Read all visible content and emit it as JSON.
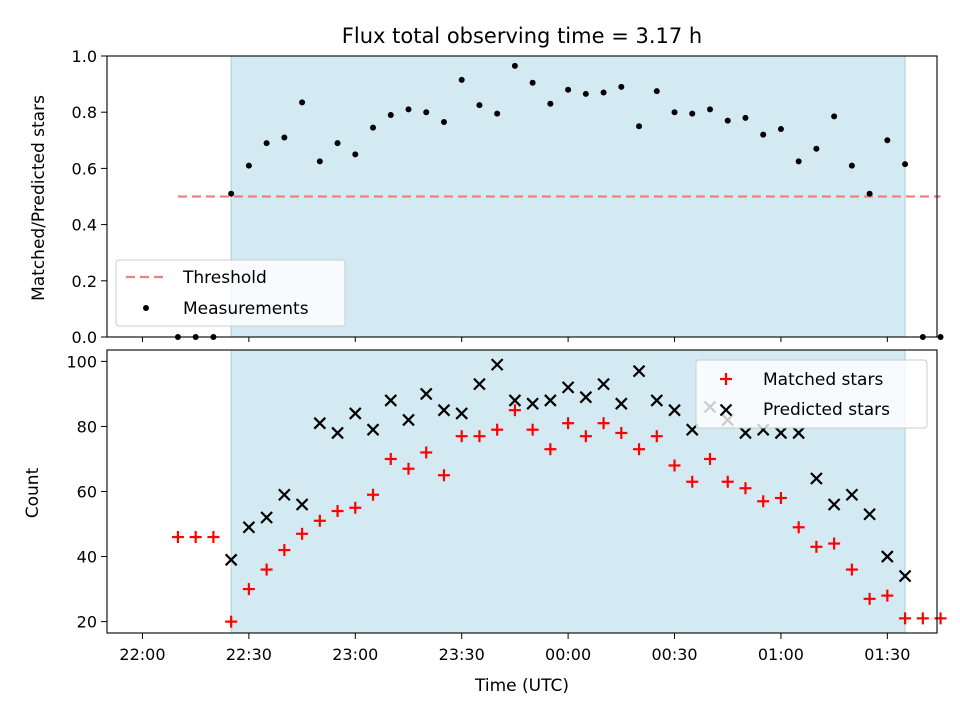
{
  "chart_data": [
    {
      "type": "scatter",
      "title": "Flux total observing time = 3.17 h",
      "xlabel": "",
      "ylabel": "Matched/Predicted stars",
      "xlim": [
        -5,
        112
      ],
      "ylim": [
        0,
        1.0
      ],
      "yticks": [
        0.0,
        0.2,
        0.4,
        0.6,
        0.8,
        1.0
      ],
      "ytick_labels": [
        "0.0",
        "0.2",
        "0.4",
        "0.6",
        "0.8",
        "1.0"
      ],
      "observing_window": [
        12.5,
        107.5
      ],
      "threshold": {
        "name": "Threshold",
        "value": 0.5,
        "x_range": [
          5,
          112.5
        ],
        "color": "#f08080"
      },
      "legend": {
        "position": "lower-left",
        "entries": [
          "Threshold",
          "Measurements"
        ]
      },
      "series": [
        {
          "name": "Measurements",
          "color": "#000000",
          "x": [
            5,
            7.5,
            10,
            12.5,
            15,
            17.5,
            20,
            22.5,
            25,
            27.5,
            30,
            32.5,
            35,
            37.5,
            40,
            42.5,
            45,
            47.5,
            50,
            52.5,
            55,
            57.5,
            60,
            62.5,
            65,
            67.5,
            70,
            72.5,
            75,
            77.5,
            80,
            82.5,
            85,
            87.5,
            90,
            92.5,
            95,
            97.5,
            100,
            102.5,
            105,
            107.5,
            110,
            112.5
          ],
          "y": [
            0,
            0,
            0,
            0.51,
            0.61,
            0.69,
            0.71,
            0.835,
            0.625,
            0.69,
            0.65,
            0.745,
            0.79,
            0.81,
            0.8,
            0.765,
            0.915,
            0.825,
            0.795,
            0.965,
            0.905,
            0.83,
            0.88,
            0.865,
            0.87,
            0.89,
            0.75,
            0.875,
            0.8,
            0.795,
            0.81,
            0.77,
            0.78,
            0.72,
            0.74,
            0.625,
            0.67,
            0.785,
            0.61,
            0.51,
            0.7,
            0.615,
            0,
            0
          ]
        }
      ]
    },
    {
      "type": "scatter",
      "title": "",
      "xlabel": "Time (UTC)",
      "ylabel": "Count",
      "xlim": [
        -5,
        112
      ],
      "ylim": [
        16.5,
        103.5
      ],
      "yticks": [
        20,
        40,
        60,
        80,
        100
      ],
      "xticks": [
        0,
        15,
        30,
        45,
        60,
        75,
        90,
        105
      ],
      "xtick_labels": [
        "22:00",
        "22:30",
        "23:00",
        "23:30",
        "00:00",
        "00:30",
        "01:00",
        "01:30"
      ],
      "observing_window": [
        12.5,
        107.5
      ],
      "legend": {
        "position": "top-right",
        "entries": [
          "Matched stars",
          "Predicted stars"
        ]
      },
      "series": [
        {
          "name": "Matched stars",
          "marker": "+",
          "color": "#ff0000",
          "x": [
            5,
            7.5,
            10,
            12.5,
            15,
            17.5,
            20,
            22.5,
            25,
            27.5,
            30,
            32.5,
            35,
            37.5,
            40,
            42.5,
            45,
            47.5,
            50,
            52.5,
            55,
            57.5,
            60,
            62.5,
            65,
            67.5,
            70,
            72.5,
            75,
            77.5,
            80,
            82.5,
            85,
            87.5,
            90,
            92.5,
            95,
            97.5,
            100,
            102.5,
            105,
            107.5,
            110,
            112.5
          ],
          "y": [
            46,
            46,
            46,
            20,
            30,
            36,
            42,
            47,
            51,
            54,
            55,
            59,
            70,
            67,
            72,
            65,
            77,
            77,
            79,
            85,
            79,
            73,
            81,
            77,
            81,
            78,
            73,
            77,
            68,
            63,
            70,
            63,
            61,
            57,
            58,
            49,
            43,
            44,
            36,
            27,
            28,
            21,
            21,
            21
          ]
        },
        {
          "name": "Predicted stars",
          "marker": "x",
          "color": "#000000",
          "x": [
            12.5,
            15,
            17.5,
            20,
            22.5,
            25,
            27.5,
            30,
            32.5,
            35,
            37.5,
            40,
            42.5,
            45,
            47.5,
            50,
            52.5,
            55,
            57.5,
            60,
            62.5,
            65,
            67.5,
            70,
            72.5,
            75,
            77.5,
            80,
            82.5,
            85,
            87.5,
            90,
            92.5,
            95,
            97.5,
            100,
            102.5,
            105,
            107.5
          ],
          "y": [
            39,
            49,
            52,
            59,
            56,
            81,
            78,
            84,
            79,
            88,
            82,
            90,
            85,
            84,
            93,
            99,
            88,
            87,
            88,
            92,
            89,
            93,
            87,
            97,
            88,
            85,
            79,
            86,
            82,
            78,
            79,
            78,
            78,
            64,
            56,
            59,
            53,
            40,
            34
          ]
        }
      ]
    }
  ],
  "colors": {
    "window_fill": "#d4eaf2",
    "window_edge": "#a9cfe0"
  }
}
